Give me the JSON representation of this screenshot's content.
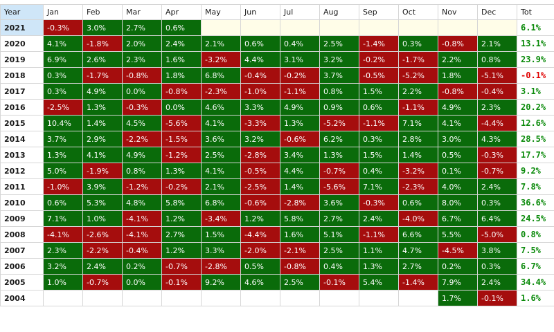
{
  "grid": {
    "headers": [
      "Year",
      "Jan",
      "Feb",
      "Mar",
      "Apr",
      "May",
      "Jun",
      "Jul",
      "Aug",
      "Sep",
      "Oct",
      "Nov",
      "Dec",
      "Tot"
    ],
    "selected_year": "2021",
    "rows": [
      {
        "year": "2021",
        "months": [
          "-0.3%",
          "3.0%",
          "2.7%",
          "0.6%",
          "",
          "",
          "",
          "",
          "",
          "",
          "",
          ""
        ],
        "tot": "6.1%"
      },
      {
        "year": "2020",
        "months": [
          "4.1%",
          "-1.8%",
          "2.0%",
          "2.4%",
          "2.1%",
          "0.6%",
          "0.4%",
          "2.5%",
          "-1.4%",
          "0.3%",
          "-0.8%",
          "2.1%"
        ],
        "tot": "13.1%"
      },
      {
        "year": "2019",
        "months": [
          "6.9%",
          "2.6%",
          "2.3%",
          "1.6%",
          "-3.2%",
          "4.4%",
          "3.1%",
          "3.2%",
          "-0.2%",
          "-1.7%",
          "2.2%",
          "0.8%"
        ],
        "tot": "23.9%"
      },
      {
        "year": "2018",
        "months": [
          "0.3%",
          "-1.7%",
          "-0.8%",
          "1.8%",
          "6.8%",
          "-0.4%",
          "-0.2%",
          "3.7%",
          "-0.5%",
          "-5.2%",
          "1.8%",
          "-5.1%"
        ],
        "tot": "-0.1%"
      },
      {
        "year": "2017",
        "months": [
          "0.3%",
          "4.9%",
          "0.0%",
          "-0.8%",
          "-2.3%",
          "-1.0%",
          "-1.1%",
          "0.8%",
          "1.5%",
          "2.2%",
          "-0.8%",
          "-0.4%"
        ],
        "tot": "3.1%"
      },
      {
        "year": "2016",
        "months": [
          "-2.5%",
          "1.3%",
          "-0.3%",
          "0.0%",
          "4.6%",
          "3.3%",
          "4.9%",
          "0.9%",
          "0.6%",
          "-1.1%",
          "4.9%",
          "2.3%"
        ],
        "tot": "20.2%"
      },
      {
        "year": "2015",
        "months": [
          "10.4%",
          "1.4%",
          "4.5%",
          "-5.6%",
          "4.1%",
          "-3.3%",
          "1.3%",
          "-5.2%",
          "-1.1%",
          "7.1%",
          "4.1%",
          "-4.4%"
        ],
        "tot": "12.6%"
      },
      {
        "year": "2014",
        "months": [
          "3.7%",
          "2.9%",
          "-2.2%",
          "-1.5%",
          "3.6%",
          "3.2%",
          "-0.6%",
          "6.2%",
          "0.3%",
          "2.8%",
          "3.0%",
          "4.3%"
        ],
        "tot": "28.5%"
      },
      {
        "year": "2013",
        "months": [
          "1.3%",
          "4.1%",
          "4.9%",
          "-1.2%",
          "2.5%",
          "-2.8%",
          "3.4%",
          "1.3%",
          "1.5%",
          "1.4%",
          "0.5%",
          "-0.3%"
        ],
        "tot": "17.7%"
      },
      {
        "year": "2012",
        "months": [
          "5.0%",
          "-1.9%",
          "0.8%",
          "1.3%",
          "4.1%",
          "-0.5%",
          "4.4%",
          "-0.7%",
          "0.4%",
          "-3.2%",
          "0.1%",
          "-0.7%"
        ],
        "tot": "9.2%"
      },
      {
        "year": "2011",
        "months": [
          "-1.0%",
          "3.9%",
          "-1.2%",
          "-0.2%",
          "2.1%",
          "-2.5%",
          "1.4%",
          "-5.6%",
          "7.1%",
          "-2.3%",
          "4.0%",
          "2.4%"
        ],
        "tot": "7.8%"
      },
      {
        "year": "2010",
        "months": [
          "0.6%",
          "5.3%",
          "4.8%",
          "5.8%",
          "6.8%",
          "-0.6%",
          "-2.8%",
          "3.6%",
          "-0.3%",
          "0.6%",
          "8.0%",
          "0.3%"
        ],
        "tot": "36.6%"
      },
      {
        "year": "2009",
        "months": [
          "7.1%",
          "1.0%",
          "-4.1%",
          "1.2%",
          "-3.4%",
          "1.2%",
          "5.8%",
          "2.7%",
          "2.4%",
          "-4.0%",
          "6.7%",
          "6.4%"
        ],
        "tot": "24.5%"
      },
      {
        "year": "2008",
        "months": [
          "-4.1%",
          "-2.6%",
          "-4.1%",
          "2.7%",
          "1.5%",
          "-4.4%",
          "1.6%",
          "5.1%",
          "-1.1%",
          "6.6%",
          "5.5%",
          "-5.0%"
        ],
        "tot": "0.8%"
      },
      {
        "year": "2007",
        "months": [
          "2.3%",
          "-2.2%",
          "-0.4%",
          "1.2%",
          "3.3%",
          "-2.0%",
          "-2.1%",
          "2.5%",
          "1.1%",
          "4.7%",
          "-4.5%",
          "3.8%"
        ],
        "tot": "7.5%"
      },
      {
        "year": "2006",
        "months": [
          "3.2%",
          "2.4%",
          "0.2%",
          "-0.7%",
          "-2.8%",
          "0.5%",
          "-0.8%",
          "0.4%",
          "1.3%",
          "2.7%",
          "0.2%",
          "0.3%"
        ],
        "tot": "6.7%"
      },
      {
        "year": "2005",
        "months": [
          "1.0%",
          "-0.7%",
          "0.0%",
          "-0.1%",
          "9.2%",
          "4.6%",
          "2.5%",
          "-0.1%",
          "5.4%",
          "-1.4%",
          "7.9%",
          "2.4%"
        ],
        "tot": "34.4%"
      },
      {
        "year": "2004",
        "months": [
          "",
          "",
          "",
          "",
          "",
          "",
          "",
          "",
          "",
          "",
          "1.7%",
          "-0.1%"
        ],
        "tot": "1.6%"
      }
    ]
  },
  "colors": {
    "positive_bg": "#0a6b0a",
    "negative_bg": "#a50d0d",
    "positive_total": "#0a8a0a",
    "negative_total": "#e00000",
    "selected_row": "#cfe6f8"
  }
}
